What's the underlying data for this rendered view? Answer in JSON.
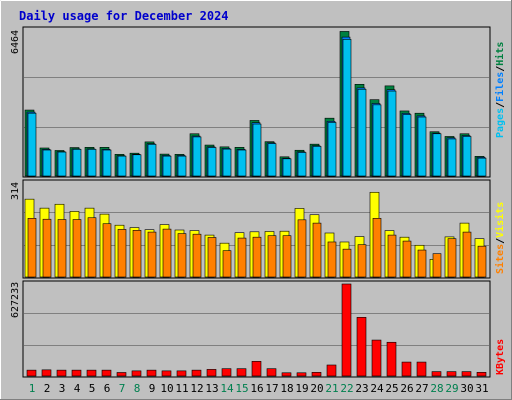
{
  "title": "Daily usage for December 2024",
  "colors": {
    "pages": "#00c0f0",
    "files": "#0080ff",
    "hits": "#008040",
    "sites": "#ff8000",
    "visits": "#ffff00",
    "kbytes": "#ff0000",
    "weekend_day": "#00804f",
    "weekday": "#000000",
    "panel_bg": "#c0c0c0"
  },
  "legends": {
    "top": [
      "Pages",
      "Files",
      "Hits"
    ],
    "middle": [
      "Sites",
      "Visits"
    ],
    "bottom": [
      "KBytes"
    ],
    "separator": "/"
  },
  "chart_data": [
    {
      "type": "bar",
      "title": "Daily usage for December 2024",
      "categories": [
        "1",
        "2",
        "3",
        "4",
        "5",
        "6",
        "7",
        "8",
        "9",
        "10",
        "11",
        "12",
        "13",
        "14",
        "15",
        "16",
        "17",
        "18",
        "19",
        "20",
        "21",
        "22",
        "23",
        "24",
        "25",
        "26",
        "27",
        "28",
        "29",
        "30",
        "31"
      ],
      "weekend_days": [
        "1",
        "7",
        "8",
        "14",
        "15",
        "21",
        "22",
        "28",
        "29"
      ],
      "ymax_label": "6464",
      "ylim": [
        0,
        6464
      ],
      "series": [
        {
          "name": "Hits",
          "values": [
            2920,
            1240,
            1130,
            1260,
            1270,
            1270,
            960,
            1010,
            1510,
            970,
            960,
            1870,
            1370,
            1290,
            1270,
            2460,
            1520,
            850,
            1140,
            1410,
            2560,
            6400,
            4060,
            3380,
            3990,
            2880,
            2780,
            1960,
            1750,
            1870,
            870
          ]
        },
        {
          "name": "Files",
          "values": [
            2830,
            1180,
            1080,
            1200,
            1200,
            1180,
            900,
            960,
            1430,
            910,
            910,
            1770,
            1290,
            1220,
            1180,
            2360,
            1470,
            790,
            1070,
            1340,
            2420,
            6150,
            3900,
            3210,
            3820,
            2770,
            2660,
            1900,
            1690,
            1790,
            830
          ]
        },
        {
          "name": "Pages",
          "values": [
            2780,
            1150,
            1060,
            1180,
            1180,
            1150,
            880,
            940,
            1400,
            880,
            880,
            1730,
            1260,
            1190,
            1150,
            2300,
            1430,
            760,
            1040,
            1310,
            2370,
            6050,
            3840,
            3150,
            3760,
            2720,
            2610,
            1870,
            1640,
            1750,
            790
          ]
        }
      ]
    },
    {
      "type": "bar",
      "ymax_label": "314",
      "ylim": [
        0,
        314
      ],
      "series": [
        {
          "name": "Visits",
          "values": [
            260,
            230,
            243,
            219,
            230,
            210,
            173,
            165,
            158,
            175,
            157,
            155,
            140,
            113,
            148,
            151,
            152,
            153,
            229,
            208,
            147,
            117,
            135,
            283,
            155,
            133,
            106,
            59,
            134,
            180,
            128
          ]
        },
        {
          "name": "Sites",
          "values": [
            196,
            193,
            192,
            192,
            198,
            178,
            159,
            156,
            150,
            160,
            145,
            143,
            132,
            88,
            130,
            133,
            138,
            138,
            191,
            180,
            117,
            93,
            108,
            196,
            140,
            120,
            90,
            78,
            128,
            150,
            103
          ]
        }
      ]
    },
    {
      "type": "bar",
      "ymax_label": "627233",
      "ylim": [
        0,
        627233
      ],
      "series": [
        {
          "name": "KBytes",
          "values": [
            40000,
            42000,
            40000,
            40000,
            40000,
            40000,
            24000,
            35000,
            40000,
            35000,
            35000,
            40000,
            45000,
            50000,
            50000,
            100000,
            50000,
            22000,
            22000,
            25000,
            75000,
            627233,
            400000,
            245000,
            230000,
            95000,
            95000,
            30000,
            30000,
            30000,
            25000
          ]
        }
      ]
    }
  ]
}
